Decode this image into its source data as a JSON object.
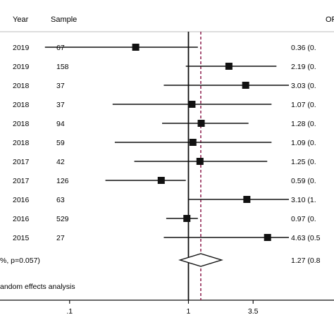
{
  "header": {
    "year_label": "Year",
    "sample_label": "Sample",
    "or_label": "OR"
  },
  "rows": [
    {
      "year": "2019",
      "sample": "67",
      "or_text": "0.36 (0."
    },
    {
      "year": "2019",
      "sample": "158",
      "or_text": "2.19 (0."
    },
    {
      "year": "2018",
      "sample": "37",
      "or_text": "3.03 (0."
    },
    {
      "year": "2018",
      "sample": "37",
      "or_text": "1.07 (0."
    },
    {
      "year": "2018",
      "sample": "94",
      "or_text": "1.28 (0."
    },
    {
      "year": "2018",
      "sample": "59",
      "or_text": "1.09 (0."
    },
    {
      "year": "2017",
      "sample": "42",
      "or_text": "1.25 (0."
    },
    {
      "year": "2017",
      "sample": "126",
      "or_text": "0.59 (0."
    },
    {
      "year": "2016",
      "sample": "63",
      "or_text": "3.10 (1."
    },
    {
      "year": "2016",
      "sample": "529",
      "or_text": "0.97 (0."
    },
    {
      "year": "2015",
      "sample": "27",
      "or_text": "4.63 (0.5"
    }
  ],
  "overall": {
    "label": "%, p=0.057)",
    "or_text": "1.27 (0.8"
  },
  "footnote": "andom effects analysis",
  "chart_data": {
    "type": "forest",
    "x_scale": "log",
    "xlim": [
      0.05,
      7.0
    ],
    "x_ticks": [
      {
        "value": 0.1,
        "label": ".1"
      },
      {
        "value": 1,
        "label": "1"
      },
      {
        "value": 3.5,
        "label": "3.5"
      }
    ],
    "reference_line": 1,
    "pooled_line": 1.27,
    "colors": {
      "pooled_line": "#8b1a4a",
      "marker": "#111111"
    },
    "studies": [
      {
        "or": 0.36,
        "ci": [
          0.062,
          1.2
        ]
      },
      {
        "or": 2.19,
        "ci": [
          0.95,
          5.5
        ]
      },
      {
        "or": 3.03,
        "ci": [
          0.62,
          7.0
        ]
      },
      {
        "or": 1.07,
        "ci": [
          0.23,
          5.0
        ]
      },
      {
        "or": 1.28,
        "ci": [
          0.6,
          3.2
        ]
      },
      {
        "or": 1.09,
        "ci": [
          0.24,
          5.0
        ]
      },
      {
        "or": 1.25,
        "ci": [
          0.35,
          4.6
        ]
      },
      {
        "or": 0.59,
        "ci": [
          0.2,
          0.95
        ]
      },
      {
        "or": 3.1,
        "ci": [
          1.0,
          7.0
        ]
      },
      {
        "or": 0.97,
        "ci": [
          0.65,
          1.2
        ]
      },
      {
        "or": 4.63,
        "ci": [
          0.62,
          7.0
        ]
      }
    ],
    "pooled": {
      "or": 1.27,
      "ci": [
        0.85,
        1.9
      ]
    }
  }
}
